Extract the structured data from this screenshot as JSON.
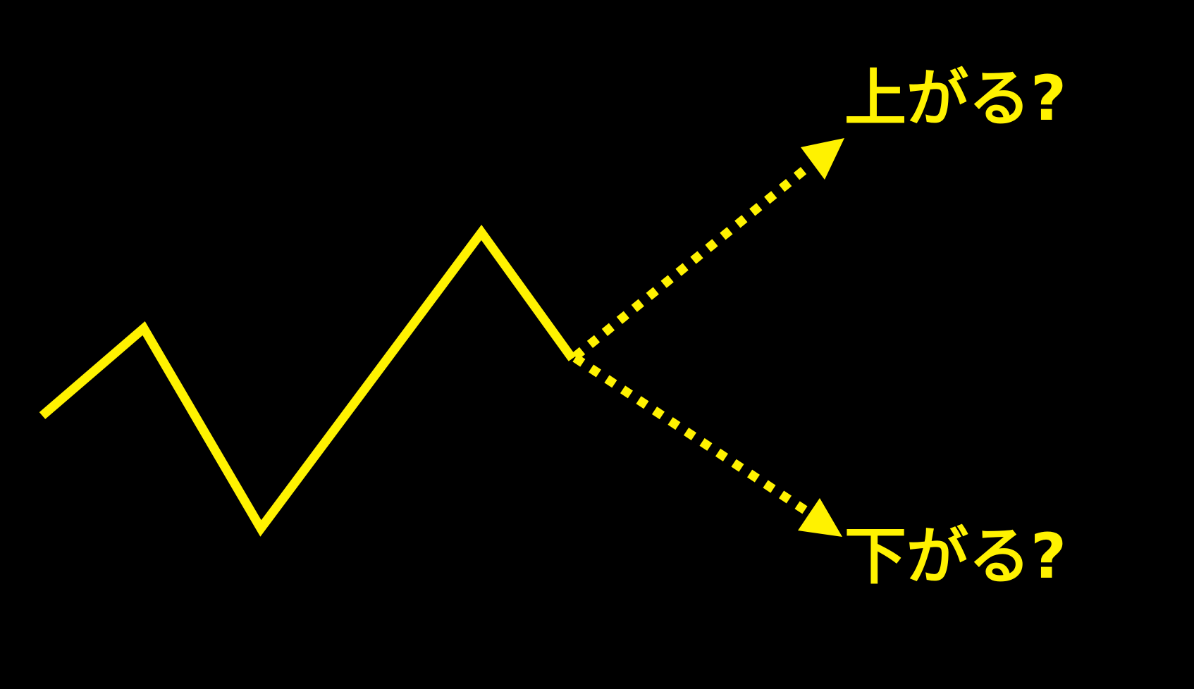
{
  "colors": {
    "background": "#000000",
    "line": "#FFF200"
  },
  "labels": {
    "up": "上がる?",
    "down": "下がる?"
  }
}
